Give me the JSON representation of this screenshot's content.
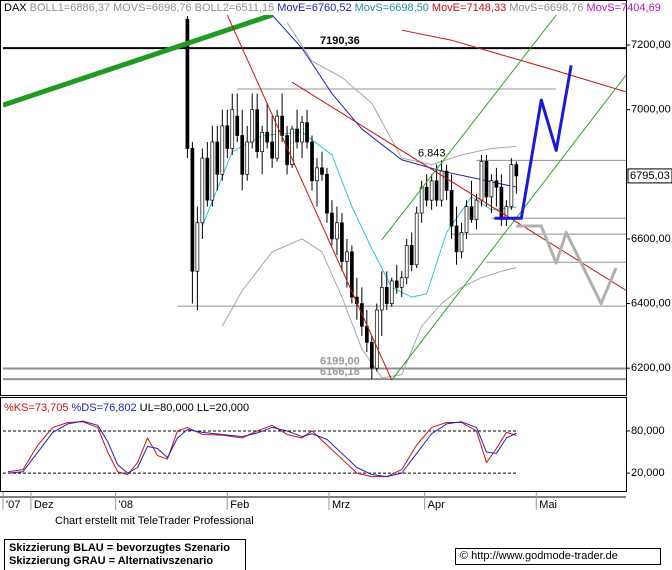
{
  "chart_data": [
    {
      "type": "candlestick",
      "header": [
        {
          "text": "DAX",
          "color": "#000000"
        },
        {
          "text": "BOLL1=6886,37",
          "color": "#909090"
        },
        {
          "text": "MOVS=6698,76",
          "color": "#909090"
        },
        {
          "text": "BOLL2=6511,15",
          "color": "#909090"
        },
        {
          "text": "MovE=6760,52",
          "color": "#2020c0"
        },
        {
          "text": "MovS=6698,50",
          "color": "#2090a0"
        },
        {
          "text": "MovE=7148,33",
          "color": "#d01010"
        },
        {
          "text": "MovS=6698,76",
          "color": "#909090"
        },
        {
          "text": "MovS=7404,69",
          "color": "#c010c0"
        }
      ],
      "xlim": [
        0,
        125
      ],
      "ylim": [
        6117,
        7293
      ],
      "yticks": [
        {
          "value": 6200,
          "label": "6200,00"
        },
        {
          "value": 6400,
          "label": "6400,00"
        },
        {
          "value": 6600,
          "label": "6600,00"
        },
        {
          "value": 7000,
          "label": "7000,00"
        },
        {
          "value": 7200,
          "label": "7200,00"
        }
      ],
      "last_value": {
        "value": 6795.03,
        "label": "6795,03"
      },
      "up_color": "#ffffff",
      "down_color": "#000000",
      "x": [
        37,
        38,
        39,
        40,
        41,
        42,
        43,
        44,
        45,
        46,
        47,
        48,
        49,
        50,
        51,
        52,
        53,
        54,
        55,
        56,
        57,
        58,
        59,
        60,
        61,
        62,
        63,
        64,
        65,
        66,
        67,
        68,
        69,
        70,
        71,
        72,
        73,
        74,
        75,
        76,
        77,
        78,
        79,
        80,
        81,
        82,
        83,
        84,
        85,
        86,
        87,
        88,
        89,
        90,
        91,
        92,
        93,
        94,
        95,
        96,
        97,
        98,
        99,
        100,
        101,
        102,
        103
      ],
      "ohlc": [
        [
          7280,
          7290,
          6850,
          6880
        ],
        [
          6880,
          6900,
          6400,
          6500
        ],
        [
          6500,
          6700,
          6380,
          6650
        ],
        [
          6650,
          6880,
          6600,
          6850
        ],
        [
          6850,
          6900,
          6700,
          6720
        ],
        [
          6720,
          6950,
          6700,
          6900
        ],
        [
          6900,
          6950,
          6750,
          6800
        ],
        [
          6800,
          7000,
          6780,
          6950
        ],
        [
          6950,
          7000,
          6850,
          6880
        ],
        [
          6880,
          7050,
          6860,
          7000
        ],
        [
          6980,
          7050,
          6900,
          6920
        ],
        [
          6920,
          7000,
          6750,
          6800
        ],
        [
          6800,
          6950,
          6780,
          6900
        ],
        [
          6900,
          7050,
          6880,
          7000
        ],
        [
          7000,
          7050,
          6850,
          6870
        ],
        [
          6870,
          6950,
          6800,
          6930
        ],
        [
          6930,
          7020,
          6880,
          6900
        ],
        [
          6900,
          6980,
          6820,
          6850
        ],
        [
          6850,
          7000,
          6840,
          6980
        ],
        [
          6980,
          7050,
          6900,
          6920
        ],
        [
          6920,
          6950,
          6800,
          6830
        ],
        [
          6830,
          6950,
          6820,
          6940
        ],
        [
          6940,
          7000,
          6880,
          6900
        ],
        [
          6900,
          6980,
          6850,
          6960
        ],
        [
          6960,
          7000,
          6880,
          6900
        ],
        [
          6900,
          6920,
          6750,
          6780
        ],
        [
          6780,
          6850,
          6700,
          6820
        ],
        [
          6820,
          6870,
          6780,
          6800
        ],
        [
          6800,
          6820,
          6650,
          6680
        ],
        [
          6680,
          6720,
          6580,
          6600
        ],
        [
          6600,
          6700,
          6550,
          6650
        ],
        [
          6650,
          6680,
          6500,
          6530
        ],
        [
          6530,
          6600,
          6450,
          6560
        ],
        [
          6560,
          6580,
          6400,
          6420
        ],
        [
          6420,
          6480,
          6350,
          6400
        ],
        [
          6400,
          6450,
          6300,
          6330
        ],
        [
          6330,
          6380,
          6250,
          6280
        ],
        [
          6280,
          6300,
          6166,
          6200
        ],
        [
          6200,
          6400,
          6190,
          6380
        ],
        [
          6380,
          6500,
          6300,
          6450
        ],
        [
          6450,
          6500,
          6380,
          6400
        ],
        [
          6400,
          6480,
          6390,
          6470
        ],
        [
          6470,
          6520,
          6430,
          6450
        ],
        [
          6450,
          6500,
          6420,
          6480
        ],
        [
          6480,
          6600,
          6460,
          6580
        ],
        [
          6580,
          6620,
          6500,
          6520
        ],
        [
          6520,
          6700,
          6510,
          6680
        ],
        [
          6680,
          6780,
          6650,
          6760
        ],
        [
          6760,
          6800,
          6700,
          6720
        ],
        [
          6720,
          6800,
          6690,
          6780
        ],
        [
          6780,
          6830,
          6700,
          6720
        ],
        [
          6720,
          6843,
          6700,
          6810
        ],
        [
          6810,
          6830,
          6720,
          6750
        ],
        [
          6750,
          6800,
          6600,
          6640
        ],
        [
          6640,
          6700,
          6520,
          6560
        ],
        [
          6560,
          6650,
          6540,
          6620
        ],
        [
          6620,
          6720,
          6600,
          6700
        ],
        [
          6700,
          6780,
          6650,
          6660
        ],
        [
          6660,
          6740,
          6630,
          6720
        ],
        [
          6720,
          6860,
          6700,
          6840
        ],
        [
          6840,
          6860,
          6700,
          6730
        ],
        [
          6730,
          6800,
          6680,
          6780
        ],
        [
          6780,
          6820,
          6700,
          6760
        ],
        [
          6760,
          6800,
          6640,
          6660
        ],
        [
          6660,
          6720,
          6640,
          6700
        ],
        [
          6700,
          6850,
          6690,
          6830
        ],
        [
          6830,
          6840,
          6740,
          6795.03
        ]
      ],
      "indicators": [
        {
          "color": "#2020c0",
          "x": [
            54,
            60,
            66,
            72,
            80,
            88,
            94,
            100,
            103
          ],
          "values": [
            7293,
            7190,
            7050,
            6940,
            6845,
            6810,
            6790,
            6770,
            6760.52
          ]
        },
        {
          "color": "#d01010",
          "x": [
            80,
            90,
            100,
            110,
            125
          ],
          "values": [
            7246,
            7215,
            7170,
            7125,
            7055
          ]
        },
        {
          "color": "#30c8d8",
          "x": [
            40,
            46,
            52,
            60,
            66,
            70,
            74,
            78,
            82,
            85,
            89,
            94,
            98,
            103
          ],
          "values": [
            6640,
            6870,
            6920,
            6930,
            6860,
            6700,
            6570,
            6450,
            6420,
            6430,
            6620,
            6730,
            6690,
            6698.5
          ]
        },
        {
          "color": "#a8a8a8",
          "x": [
            57,
            62,
            68,
            74,
            80,
            86,
            92,
            98,
            103
          ],
          "values": [
            7270,
            7150,
            7100,
            7020,
            6850,
            6830,
            6860,
            6880,
            6886.37
          ]
        },
        {
          "color": "#a8a8a8",
          "x": [
            44,
            48,
            54,
            60,
            64,
            68,
            72,
            76,
            80,
            84,
            88,
            92,
            96,
            100,
            103
          ],
          "values": [
            6330,
            6440,
            6560,
            6600,
            6560,
            6420,
            6260,
            6170,
            6180,
            6330,
            6400,
            6450,
            6480,
            6500,
            6511.15
          ]
        }
      ],
      "drawings": [
        {
          "color": "#229922",
          "width": 5,
          "x": [
            0,
            54
          ],
          "values": [
            7014,
            7293
          ]
        },
        {
          "color": "#d01010",
          "width": 1,
          "x": [
            45,
            78
          ],
          "values": [
            7293,
            6163
          ]
        },
        {
          "color": "#d01010",
          "width": 1,
          "x": [
            58,
            125
          ],
          "values": [
            7085,
            6441
          ]
        },
        {
          "color": "#22aa22",
          "width": 1,
          "x": [
            76,
            111
          ],
          "values": [
            6597,
            7293
          ]
        },
        {
          "color": "#22aa22",
          "width": 1,
          "x": [
            78,
            125
          ],
          "values": [
            6163,
            7107
          ]
        },
        {
          "color": "#1a1ad8",
          "width": 3,
          "x": [
            98.6,
            104,
            108,
            111,
            114
          ],
          "values": [
            6664,
            6664,
            7030,
            6874,
            7137
          ]
        },
        {
          "color": "#b0b0b0",
          "width": 3,
          "x": [
            103,
            108,
            111,
            113,
            120,
            123
          ],
          "values": [
            6640,
            6640,
            6525,
            6620,
            6400,
            6510
          ]
        }
      ],
      "levels": [
        {
          "value": 7190.36,
          "label": "7190,36",
          "color": "#000000",
          "width": 2,
          "x": [
            0,
            125
          ]
        },
        {
          "value": 7064,
          "color": "#909090",
          "width": 1,
          "x": [
            47,
            111
          ]
        },
        {
          "value": 6843,
          "label": "6.843",
          "color": "#909090",
          "width": 1,
          "x": [
            95,
            125
          ]
        },
        {
          "value": 6664,
          "color": "#909090",
          "width": 1,
          "x": [
            98,
            125
          ]
        },
        {
          "value": 6615,
          "color": "#909090",
          "width": 1,
          "x": [
            90,
            125
          ]
        },
        {
          "value": 6528,
          "color": "#909090",
          "width": 1,
          "x": [
            97,
            125
          ]
        },
        {
          "value": 6392,
          "color": "#909090",
          "width": 1,
          "x": [
            35,
            125
          ]
        },
        {
          "value": 6199,
          "label": "6199,00",
          "color": "#909090",
          "width": 2,
          "x": [
            0,
            125
          ]
        },
        {
          "value": 6166.18,
          "label": "6166,18",
          "color": "#909090",
          "width": 2,
          "x": [
            0,
            125
          ]
        }
      ]
    },
    {
      "type": "line",
      "header": [
        {
          "text": "%KS=73,705",
          "color": "#d01010"
        },
        {
          "text": "%DS=76,802",
          "color": "#2020c0"
        },
        {
          "text": "UL=80,000 LL=20,000",
          "color": "#000000"
        }
      ],
      "xlim": [
        0,
        125
      ],
      "ylim": [
        -4,
        124
      ],
      "yticks": [
        {
          "value": 20,
          "label": "20,000"
        },
        {
          "value": 80,
          "label": "80,000"
        }
      ],
      "xticks": [
        {
          "value": 0,
          "label": "'07"
        },
        {
          "value": 5.6,
          "label": "Dez"
        },
        {
          "value": 22.6,
          "label": "'08"
        },
        {
          "value": 45,
          "label": "Feb"
        },
        {
          "value": 65.4,
          "label": "Mrz"
        },
        {
          "value": 84.6,
          "label": "Apr"
        },
        {
          "value": 107,
          "label": "Mai"
        }
      ],
      "series": [
        {
          "color": "#d01010",
          "x": [
            1,
            4,
            7,
            10,
            13,
            16,
            19,
            21,
            23,
            25,
            27,
            29,
            31,
            33,
            35,
            37,
            40,
            44,
            48,
            51,
            54,
            57,
            60,
            62,
            65,
            68,
            71,
            74,
            77,
            80,
            83,
            86,
            89,
            92,
            95,
            97,
            99,
            101,
            103
          ],
          "values": [
            22,
            25,
            60,
            85,
            92,
            93,
            85,
            50,
            22,
            18,
            35,
            70,
            45,
            40,
            80,
            85,
            75,
            74,
            70,
            80,
            88,
            75,
            70,
            80,
            60,
            40,
            20,
            15,
            15,
            25,
            60,
            85,
            92,
            92,
            80,
            35,
            55,
            78,
            73.705
          ]
        },
        {
          "color": "#2020c0",
          "x": [
            1,
            4,
            7,
            10,
            13,
            16,
            19,
            21,
            23,
            25,
            27,
            29,
            31,
            33,
            35,
            37,
            40,
            44,
            48,
            51,
            54,
            57,
            60,
            62,
            65,
            68,
            71,
            74,
            77,
            80,
            83,
            86,
            89,
            92,
            95,
            97,
            99,
            101,
            103
          ],
          "values": [
            20,
            22,
            50,
            78,
            90,
            94,
            88,
            65,
            32,
            20,
            28,
            58,
            55,
            42,
            70,
            82,
            78,
            75,
            72,
            77,
            85,
            80,
            72,
            76,
            68,
            48,
            28,
            18,
            15,
            20,
            48,
            76,
            90,
            93,
            85,
            50,
            48,
            70,
            76.802
          ]
        }
      ]
    }
  ],
  "footer": {
    "credit": "Chart erstellt mit TeleTrader Professional",
    "legend": [
      "Skizzierung BLAU = bevorzugtes Szenario",
      "Skizzierung GRAU = Alternativszenario"
    ],
    "source": "© http://www.godmode-trader.de"
  }
}
